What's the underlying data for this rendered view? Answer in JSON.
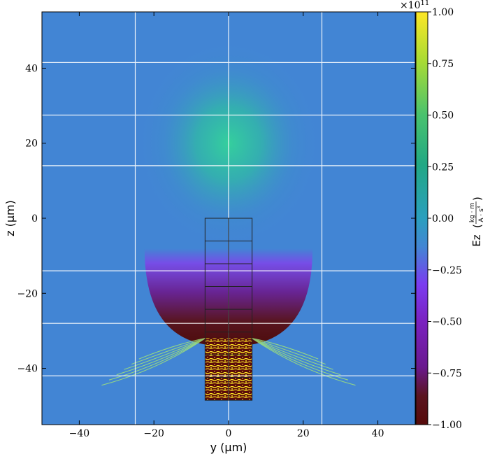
{
  "chart_data": {
    "type": "heatmap",
    "xlabel": "y  (μm)",
    "ylabel": "z  (μm)",
    "xlim": [
      -50,
      50
    ],
    "ylim": [
      -55,
      55
    ],
    "x_ticks": [
      -40,
      -20,
      0,
      20,
      40
    ],
    "y_ticks": [
      40,
      20,
      0,
      -20,
      -40
    ],
    "x_tick_labels": [
      "−40",
      "−20",
      "0",
      "20",
      "40"
    ],
    "y_tick_labels": [
      "40",
      "20",
      "0",
      "−20",
      "−40"
    ],
    "grid": true,
    "grid_x": [
      -25,
      0,
      25
    ],
    "grid_y": [
      41.5,
      27.5,
      14,
      -14,
      -28,
      -42
    ],
    "field_regions": {
      "positive_lobe_center": [
        0,
        20
      ],
      "negative_lobe_center": [
        0,
        -22
      ],
      "background_value": 0.07,
      "positive_peak_value": 0.32,
      "negative_peak_value": -0.93
    },
    "overlay": {
      "structure_x": [
        -6.3,
        6.3
      ],
      "structure_y": [
        0,
        -48.5
      ],
      "grid_cells_rows": 8,
      "grid_cells_cols": 2,
      "speckle_region_y": [
        -32,
        -48.5
      ]
    },
    "colorbar": {
      "label_main": "Ez",
      "unit_numerator": "kg · m",
      "unit_denominator": "A · s",
      "unit_exponent": "3",
      "range": [
        -1.0,
        1.0
      ],
      "multiplier_base": "×10",
      "multiplier_exponent": "11",
      "ticks": [
        1.0,
        0.75,
        0.5,
        0.25,
        0.0,
        -0.25,
        -0.5,
        -0.75,
        -1.0
      ],
      "tick_labels": [
        "1.00",
        "0.75",
        "0.50",
        "0.25",
        "0.00",
        "−0.25",
        "−0.50",
        "−0.75",
        "−1.00"
      ],
      "colormap_stops": [
        "#fde725",
        "#7ad151",
        "#22a884",
        "#2a9fbe",
        "#4285d4",
        "#7b3cf0",
        "#6a198f",
        "#5a1520",
        "#5a0a0a"
      ]
    }
  }
}
